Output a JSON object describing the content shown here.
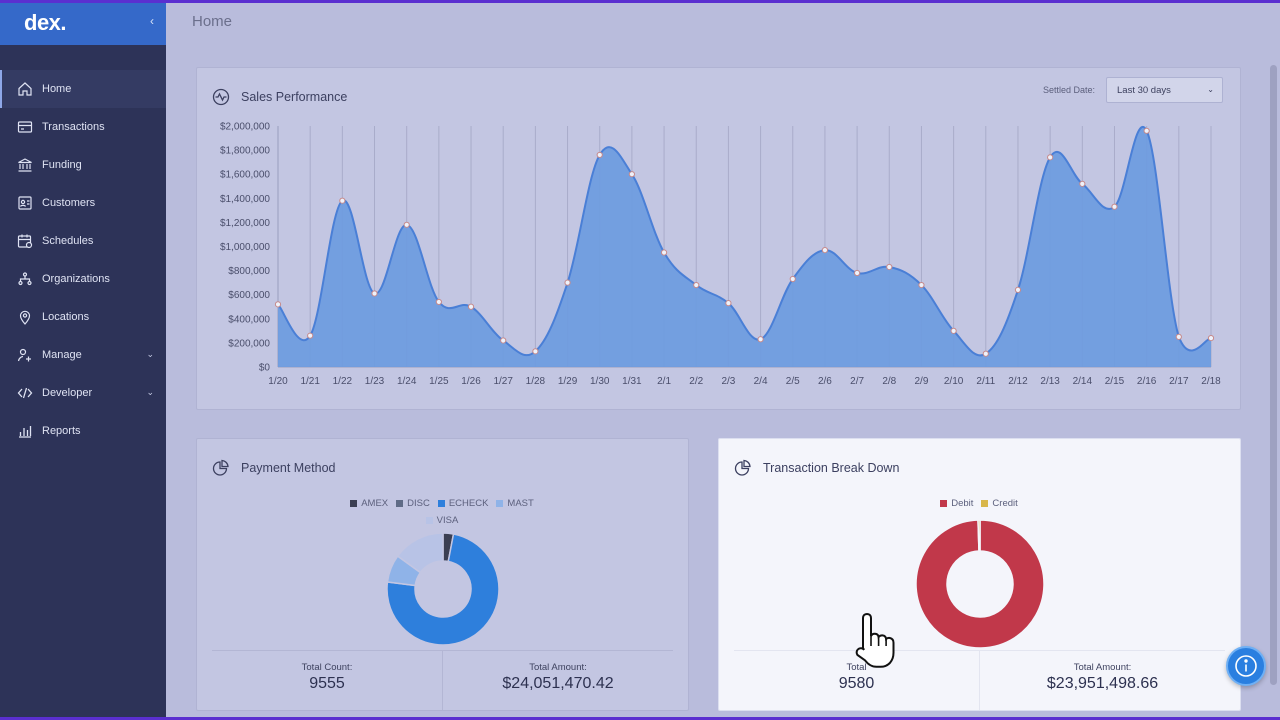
{
  "app": {
    "logo": "dex."
  },
  "sidebar": {
    "collapse_icon": "chevron-left-icon",
    "items": [
      {
        "label": "Home",
        "icon": "home-icon"
      },
      {
        "label": "Transactions",
        "icon": "card-icon"
      },
      {
        "label": "Funding",
        "icon": "bank-icon"
      },
      {
        "label": "Customers",
        "icon": "customers-icon"
      },
      {
        "label": "Schedules",
        "icon": "calendar-icon"
      },
      {
        "label": "Organizations",
        "icon": "org-icon"
      },
      {
        "label": "Locations",
        "icon": "location-icon"
      },
      {
        "label": "Manage",
        "icon": "manage-icon",
        "expandable": true
      },
      {
        "label": "Developer",
        "icon": "code-icon",
        "expandable": true
      },
      {
        "label": "Reports",
        "icon": "reports-icon"
      }
    ]
  },
  "page": {
    "title": "Home"
  },
  "sales": {
    "title": "Sales Performance",
    "settled_label": "Settled Date:",
    "range": "Last 30 days"
  },
  "chart_data": [
    {
      "type": "area",
      "title": "Sales Performance",
      "x": [
        "1/20",
        "1/21",
        "1/22",
        "1/23",
        "1/24",
        "1/25",
        "1/26",
        "1/27",
        "1/28",
        "1/29",
        "1/30",
        "1/31",
        "2/1",
        "2/2",
        "2/3",
        "2/4",
        "2/5",
        "2/6",
        "2/7",
        "2/8",
        "2/9",
        "2/10",
        "2/11",
        "2/12",
        "2/13",
        "2/14",
        "2/15",
        "2/16",
        "2/17",
        "2/18"
      ],
      "values": [
        520000,
        260000,
        1380000,
        610000,
        1180000,
        540000,
        500000,
        220000,
        130000,
        700000,
        1760000,
        1600000,
        950000,
        680000,
        530000,
        230000,
        730000,
        970000,
        780000,
        830000,
        680000,
        300000,
        110000,
        640000,
        1740000,
        1520000,
        1330000,
        1960000,
        250000,
        240000
      ],
      "ylim": [
        0,
        2000000
      ],
      "yticks": [
        "$0",
        "$200,000",
        "$400,000",
        "$600,000",
        "$800,000",
        "$1,000,000",
        "$1,200,000",
        "$1,400,000",
        "$1,600,000",
        "$1,800,000",
        "$2,000,000"
      ],
      "color": "#6d9be0",
      "grid": "vertical"
    },
    {
      "type": "pie",
      "title": "Payment Method",
      "labels": [
        "AMEX",
        "DISC",
        "ECHECK",
        "MAST",
        "VISA"
      ],
      "values": [
        3,
        0,
        74,
        8,
        15
      ],
      "colors": [
        "#3b3f52",
        "#5f6b86",
        "#2e7fdc",
        "#8fb3e8",
        "#b8c3e6"
      ]
    },
    {
      "type": "pie",
      "title": "Transaction Break Down",
      "labels": [
        "Debit",
        "Credit"
      ],
      "values": [
        99.5,
        0.5
      ],
      "colors": [
        "#c1384a",
        "#d8b64a"
      ]
    }
  ],
  "payment": {
    "title": "Payment Method",
    "count_label": "Total Count:",
    "count": "9555",
    "amount_label": "Total Amount:",
    "amount": "$24,051,470.42"
  },
  "breakdown": {
    "title": "Transaction Break Down",
    "count_label": "Total",
    "count": "9580",
    "amount_label": "Total Amount:",
    "amount": "$23,951,498.66"
  },
  "info_button": {
    "icon": "info-icon"
  }
}
